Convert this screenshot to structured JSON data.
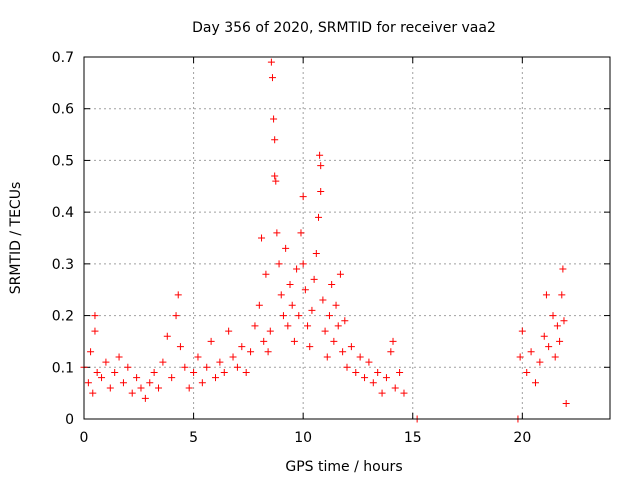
{
  "chart_data": {
    "type": "scatter",
    "title": "Day 356 of 2020, SRMTID for receiver vaa2",
    "xlabel": "GPS time / hours",
    "ylabel": "SRMTID / TECUs",
    "xlim": [
      0,
      24
    ],
    "ylim": [
      0,
      0.7
    ],
    "x_ticks": [
      0,
      5,
      10,
      15,
      20
    ],
    "x_tick_labels": [
      "0",
      "5",
      "10",
      "15",
      "20"
    ],
    "y_ticks": [
      0,
      0.1,
      0.2,
      0.3,
      0.4,
      0.5,
      0.6,
      0.7
    ],
    "y_tick_labels": [
      "0",
      "0.1",
      "0.2",
      "0.3",
      "0.4",
      "0.5",
      "0.6",
      "0.7"
    ],
    "grid": true,
    "legend": "none",
    "marker": "plus",
    "color": "#ff0000",
    "series": [
      {
        "name": "SRMTID",
        "points": [
          [
            0.0,
            0.1
          ],
          [
            0.2,
            0.07
          ],
          [
            0.3,
            0.13
          ],
          [
            0.4,
            0.05
          ],
          [
            0.5,
            0.2
          ],
          [
            0.5,
            0.17
          ],
          [
            0.6,
            0.09
          ],
          [
            0.8,
            0.08
          ],
          [
            1.0,
            0.11
          ],
          [
            1.2,
            0.06
          ],
          [
            1.4,
            0.09
          ],
          [
            1.6,
            0.12
          ],
          [
            1.8,
            0.07
          ],
          [
            2.0,
            0.1
          ],
          [
            2.2,
            0.05
          ],
          [
            2.4,
            0.08
          ],
          [
            2.6,
            0.06
          ],
          [
            2.8,
            0.04
          ],
          [
            3.0,
            0.07
          ],
          [
            3.2,
            0.09
          ],
          [
            3.4,
            0.06
          ],
          [
            3.6,
            0.11
          ],
          [
            3.8,
            0.16
          ],
          [
            4.0,
            0.08
          ],
          [
            4.2,
            0.2
          ],
          [
            4.3,
            0.24
          ],
          [
            4.4,
            0.14
          ],
          [
            4.6,
            0.1
          ],
          [
            4.8,
            0.06
          ],
          [
            5.0,
            0.09
          ],
          [
            5.2,
            0.12
          ],
          [
            5.4,
            0.07
          ],
          [
            5.6,
            0.1
          ],
          [
            5.8,
            0.15
          ],
          [
            6.0,
            0.08
          ],
          [
            6.2,
            0.11
          ],
          [
            6.4,
            0.09
          ],
          [
            6.6,
            0.17
          ],
          [
            6.8,
            0.12
          ],
          [
            7.0,
            0.1
          ],
          [
            7.2,
            0.14
          ],
          [
            7.4,
            0.09
          ],
          [
            7.6,
            0.13
          ],
          [
            7.8,
            0.18
          ],
          [
            8.0,
            0.22
          ],
          [
            8.1,
            0.35
          ],
          [
            8.2,
            0.15
          ],
          [
            8.3,
            0.28
          ],
          [
            8.4,
            0.13
          ],
          [
            8.5,
            0.17
          ],
          [
            8.55,
            0.69
          ],
          [
            8.6,
            0.66
          ],
          [
            8.65,
            0.58
          ],
          [
            8.7,
            0.54
          ],
          [
            8.7,
            0.47
          ],
          [
            8.75,
            0.46
          ],
          [
            8.8,
            0.36
          ],
          [
            8.9,
            0.3
          ],
          [
            9.0,
            0.24
          ],
          [
            9.1,
            0.2
          ],
          [
            9.2,
            0.33
          ],
          [
            9.3,
            0.18
          ],
          [
            9.4,
            0.26
          ],
          [
            9.5,
            0.22
          ],
          [
            9.6,
            0.15
          ],
          [
            9.7,
            0.29
          ],
          [
            9.8,
            0.2
          ],
          [
            9.9,
            0.36
          ],
          [
            10.0,
            0.43
          ],
          [
            10.0,
            0.3
          ],
          [
            10.1,
            0.25
          ],
          [
            10.2,
            0.18
          ],
          [
            10.3,
            0.14
          ],
          [
            10.4,
            0.21
          ],
          [
            10.5,
            0.27
          ],
          [
            10.6,
            0.32
          ],
          [
            10.7,
            0.39
          ],
          [
            10.75,
            0.51
          ],
          [
            10.8,
            0.49
          ],
          [
            10.8,
            0.44
          ],
          [
            10.9,
            0.23
          ],
          [
            11.0,
            0.17
          ],
          [
            11.1,
            0.12
          ],
          [
            11.2,
            0.2
          ],
          [
            11.3,
            0.26
          ],
          [
            11.4,
            0.15
          ],
          [
            11.5,
            0.22
          ],
          [
            11.6,
            0.18
          ],
          [
            11.7,
            0.28
          ],
          [
            11.8,
            0.13
          ],
          [
            11.9,
            0.19
          ],
          [
            12.0,
            0.1
          ],
          [
            12.2,
            0.14
          ],
          [
            12.4,
            0.09
          ],
          [
            12.6,
            0.12
          ],
          [
            12.8,
            0.08
          ],
          [
            13.0,
            0.11
          ],
          [
            13.2,
            0.07
          ],
          [
            13.4,
            0.09
          ],
          [
            13.6,
            0.05
          ],
          [
            13.8,
            0.08
          ],
          [
            14.0,
            0.13
          ],
          [
            14.1,
            0.15
          ],
          [
            14.2,
            0.06
          ],
          [
            14.4,
            0.09
          ],
          [
            14.6,
            0.05
          ],
          [
            15.2,
            0.0
          ],
          [
            19.8,
            0.0
          ],
          [
            19.9,
            0.12
          ],
          [
            20.0,
            0.17
          ],
          [
            20.2,
            0.09
          ],
          [
            20.4,
            0.13
          ],
          [
            20.6,
            0.07
          ],
          [
            20.8,
            0.11
          ],
          [
            21.0,
            0.16
          ],
          [
            21.1,
            0.24
          ],
          [
            21.2,
            0.14
          ],
          [
            21.4,
            0.2
          ],
          [
            21.5,
            0.12
          ],
          [
            21.6,
            0.18
          ],
          [
            21.7,
            0.15
          ],
          [
            21.8,
            0.24
          ],
          [
            21.85,
            0.29
          ],
          [
            21.9,
            0.19
          ],
          [
            22.0,
            0.03
          ]
        ]
      }
    ]
  }
}
